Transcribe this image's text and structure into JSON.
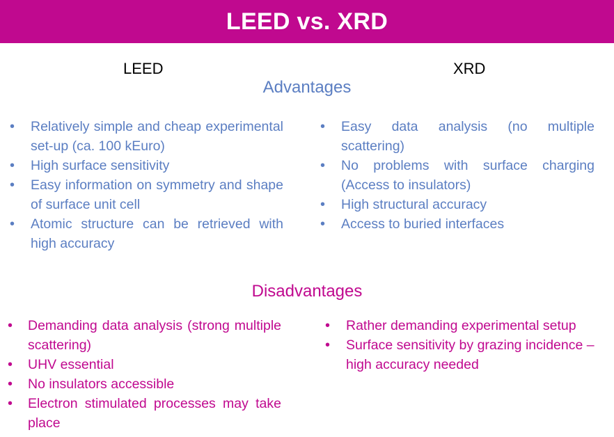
{
  "title": "LEED vs. XRD",
  "columns": {
    "left": "LEED",
    "right": "XRD"
  },
  "colors": {
    "title_bar": "#c0098f",
    "advantages": "#5b7ec2",
    "disadvantages": "#c0098f"
  },
  "advantages": {
    "heading": "Advantages",
    "leed": [
      "Relatively simple and cheap experimental set-up (ca. 100 kEuro)",
      "High surface sensitivity",
      "Easy information on symmetry and shape of surface unit cell",
      "Atomic structure can be retrieved with high accuracy"
    ],
    "xrd": [
      "Easy data analysis (no multiple scattering)",
      "No problems with surface charging (Access to insulators)",
      "High structural accuracy",
      "Access to buried interfaces"
    ]
  },
  "disadvantages": {
    "heading": "Disadvantages",
    "leed": [
      "Demanding data analysis (strong multiple scattering)",
      "UHV essential",
      "No insulators accessible",
      "Electron stimulated processes may take place"
    ],
    "xrd": [
      "Rather demanding experimental setup",
      "Surface sensitivity by grazing incidence – high accuracy needed"
    ]
  }
}
